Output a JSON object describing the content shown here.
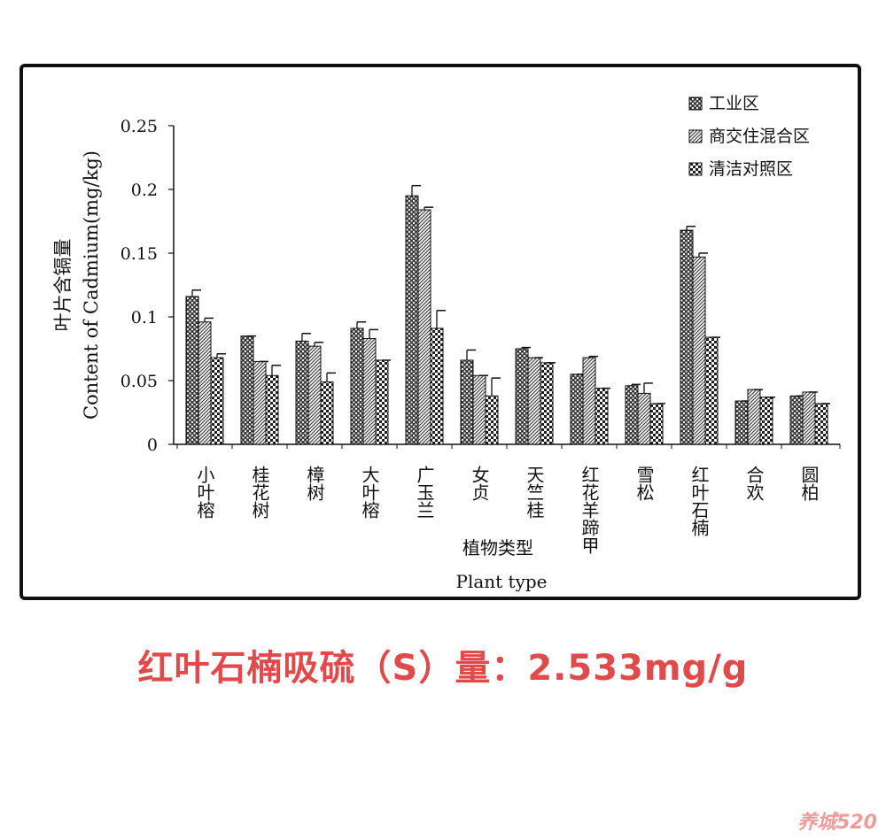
{
  "chart_data": {
    "type": "bar",
    "ylabel_cn": "叶片含镉量",
    "ylabel_en": "Content of Cadmium(mg/kg)",
    "xlabel_cn": "植物类型",
    "xlabel_en": "Plant type",
    "ylim": [
      0,
      0.25
    ],
    "y_ticks": [
      "0",
      "0.05",
      "0.1",
      "0.15",
      "0.2",
      "0.25"
    ],
    "categories": [
      "小叶榕",
      "桂花树",
      "樟树",
      "大叶榕",
      "广玉兰",
      "女贞",
      "天竺桂",
      "红花羊蹄甲",
      "雪松",
      "红叶石楠",
      "合欢",
      "圆柏"
    ],
    "legend_position": "top-right",
    "series": [
      {
        "name": "工业区",
        "values": [
          0.116,
          0.085,
          0.081,
          0.091,
          0.195,
          0.066,
          0.075,
          0.055,
          0.046,
          0.168,
          0.034,
          0.038
        ],
        "errors": [
          0.005,
          0.0,
          0.006,
          0.005,
          0.008,
          0.008,
          0.001,
          0.0,
          0.001,
          0.003,
          0.0,
          0.0
        ]
      },
      {
        "name": "商交住混合区",
        "values": [
          0.096,
          0.065,
          0.077,
          0.083,
          0.184,
          0.054,
          0.068,
          0.068,
          0.04,
          0.147,
          0.043,
          0.041
        ],
        "errors": [
          0.003,
          0.0,
          0.003,
          0.007,
          0.002,
          0.0,
          0.0,
          0.001,
          0.008,
          0.003,
          0.0,
          0.0
        ]
      },
      {
        "name": "清洁对照区",
        "values": [
          0.068,
          0.054,
          0.049,
          0.066,
          0.091,
          0.038,
          0.064,
          0.044,
          0.032,
          0.084,
          0.037,
          0.032
        ],
        "errors": [
          0.003,
          0.008,
          0.007,
          0.0,
          0.014,
          0.014,
          0.0,
          0.0,
          0.0,
          0.0,
          0.0,
          0.0
        ]
      }
    ]
  },
  "caption": {
    "text": "红叶石楠吸硫（S）量：2.533mg/g",
    "color": "#e04a4a"
  },
  "watermark": {
    "text": "养城520"
  }
}
